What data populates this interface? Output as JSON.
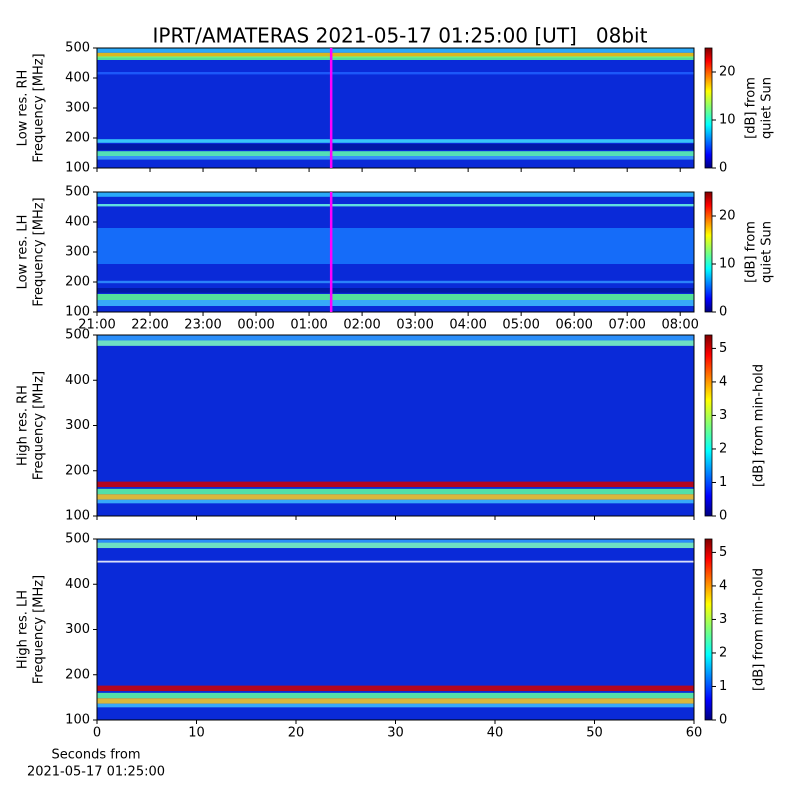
{
  "title": "IPRT/AMATERAS 2021-05-17 01:25:00 [UT]   08bit",
  "chart_data": [
    {
      "type": "heatmap",
      "ylabel": [
        "Low res. RH",
        "Frequency [MHz]"
      ],
      "ylim": [
        100,
        500
      ],
      "yticks": [
        100,
        200,
        300,
        400,
        500
      ],
      "xlim": [
        21,
        32.26
      ],
      "marker": {
        "x": 25.4167,
        "color": "#ff00ff"
      },
      "colorbar": {
        "clim": [
          0,
          25
        ],
        "cticks": [
          0,
          10,
          20
        ],
        "label": [
          "[dB] from",
          "quiet Sun"
        ]
      }
    },
    {
      "type": "heatmap",
      "ylabel": [
        "Low res. LH",
        "Frequency [MHz]"
      ],
      "ylim": [
        100,
        500
      ],
      "yticks": [
        100,
        200,
        300,
        400,
        500
      ],
      "xlim": [
        21,
        32.26
      ],
      "xticks": [
        {
          "value": 21,
          "label": "21:00"
        },
        {
          "value": 22,
          "label": "22:00"
        },
        {
          "value": 23,
          "label": "23:00"
        },
        {
          "value": 24,
          "label": "00:00"
        },
        {
          "value": 25,
          "label": "01:00"
        },
        {
          "value": 26,
          "label": "02:00"
        },
        {
          "value": 27,
          "label": "03:00"
        },
        {
          "value": 28,
          "label": "04:00"
        },
        {
          "value": 29,
          "label": "05:00"
        },
        {
          "value": 30,
          "label": "06:00"
        },
        {
          "value": 31,
          "label": "07:00"
        },
        {
          "value": 32,
          "label": "08:00"
        }
      ],
      "marker": {
        "x": 25.4167,
        "color": "#ff00ff"
      },
      "colorbar": {
        "clim": [
          0,
          25
        ],
        "cticks": [
          0,
          10,
          20
        ],
        "label": [
          "[dB] from",
          "quiet Sun"
        ]
      }
    },
    {
      "type": "heatmap",
      "ylabel": [
        "High res. RH",
        "Frequency [MHz]"
      ],
      "ylim": [
        100,
        500
      ],
      "yticks": [
        100,
        200,
        300,
        400,
        500
      ],
      "xlim": [
        0,
        60
      ],
      "colorbar": {
        "clim": [
          0,
          5.4
        ],
        "cticks": [
          0,
          1,
          2,
          3,
          4,
          5
        ],
        "label": [
          "[dB] from min-hold"
        ]
      }
    },
    {
      "type": "heatmap",
      "ylabel": [
        "High res. LH",
        "Frequency [MHz]"
      ],
      "ylim": [
        100,
        500
      ],
      "yticks": [
        100,
        200,
        300,
        400,
        500
      ],
      "xlim": [
        0,
        60
      ],
      "xticks": [
        0,
        10,
        20,
        30,
        40,
        50,
        60
      ],
      "xlabel": [
        "Seconds from",
        "2021-05-17 01:25:00"
      ],
      "colorbar": {
        "clim": [
          0,
          5.4
        ],
        "cticks": [
          0,
          1,
          2,
          3,
          4,
          5
        ],
        "label": [
          "[dB] from min-hold"
        ]
      }
    }
  ]
}
